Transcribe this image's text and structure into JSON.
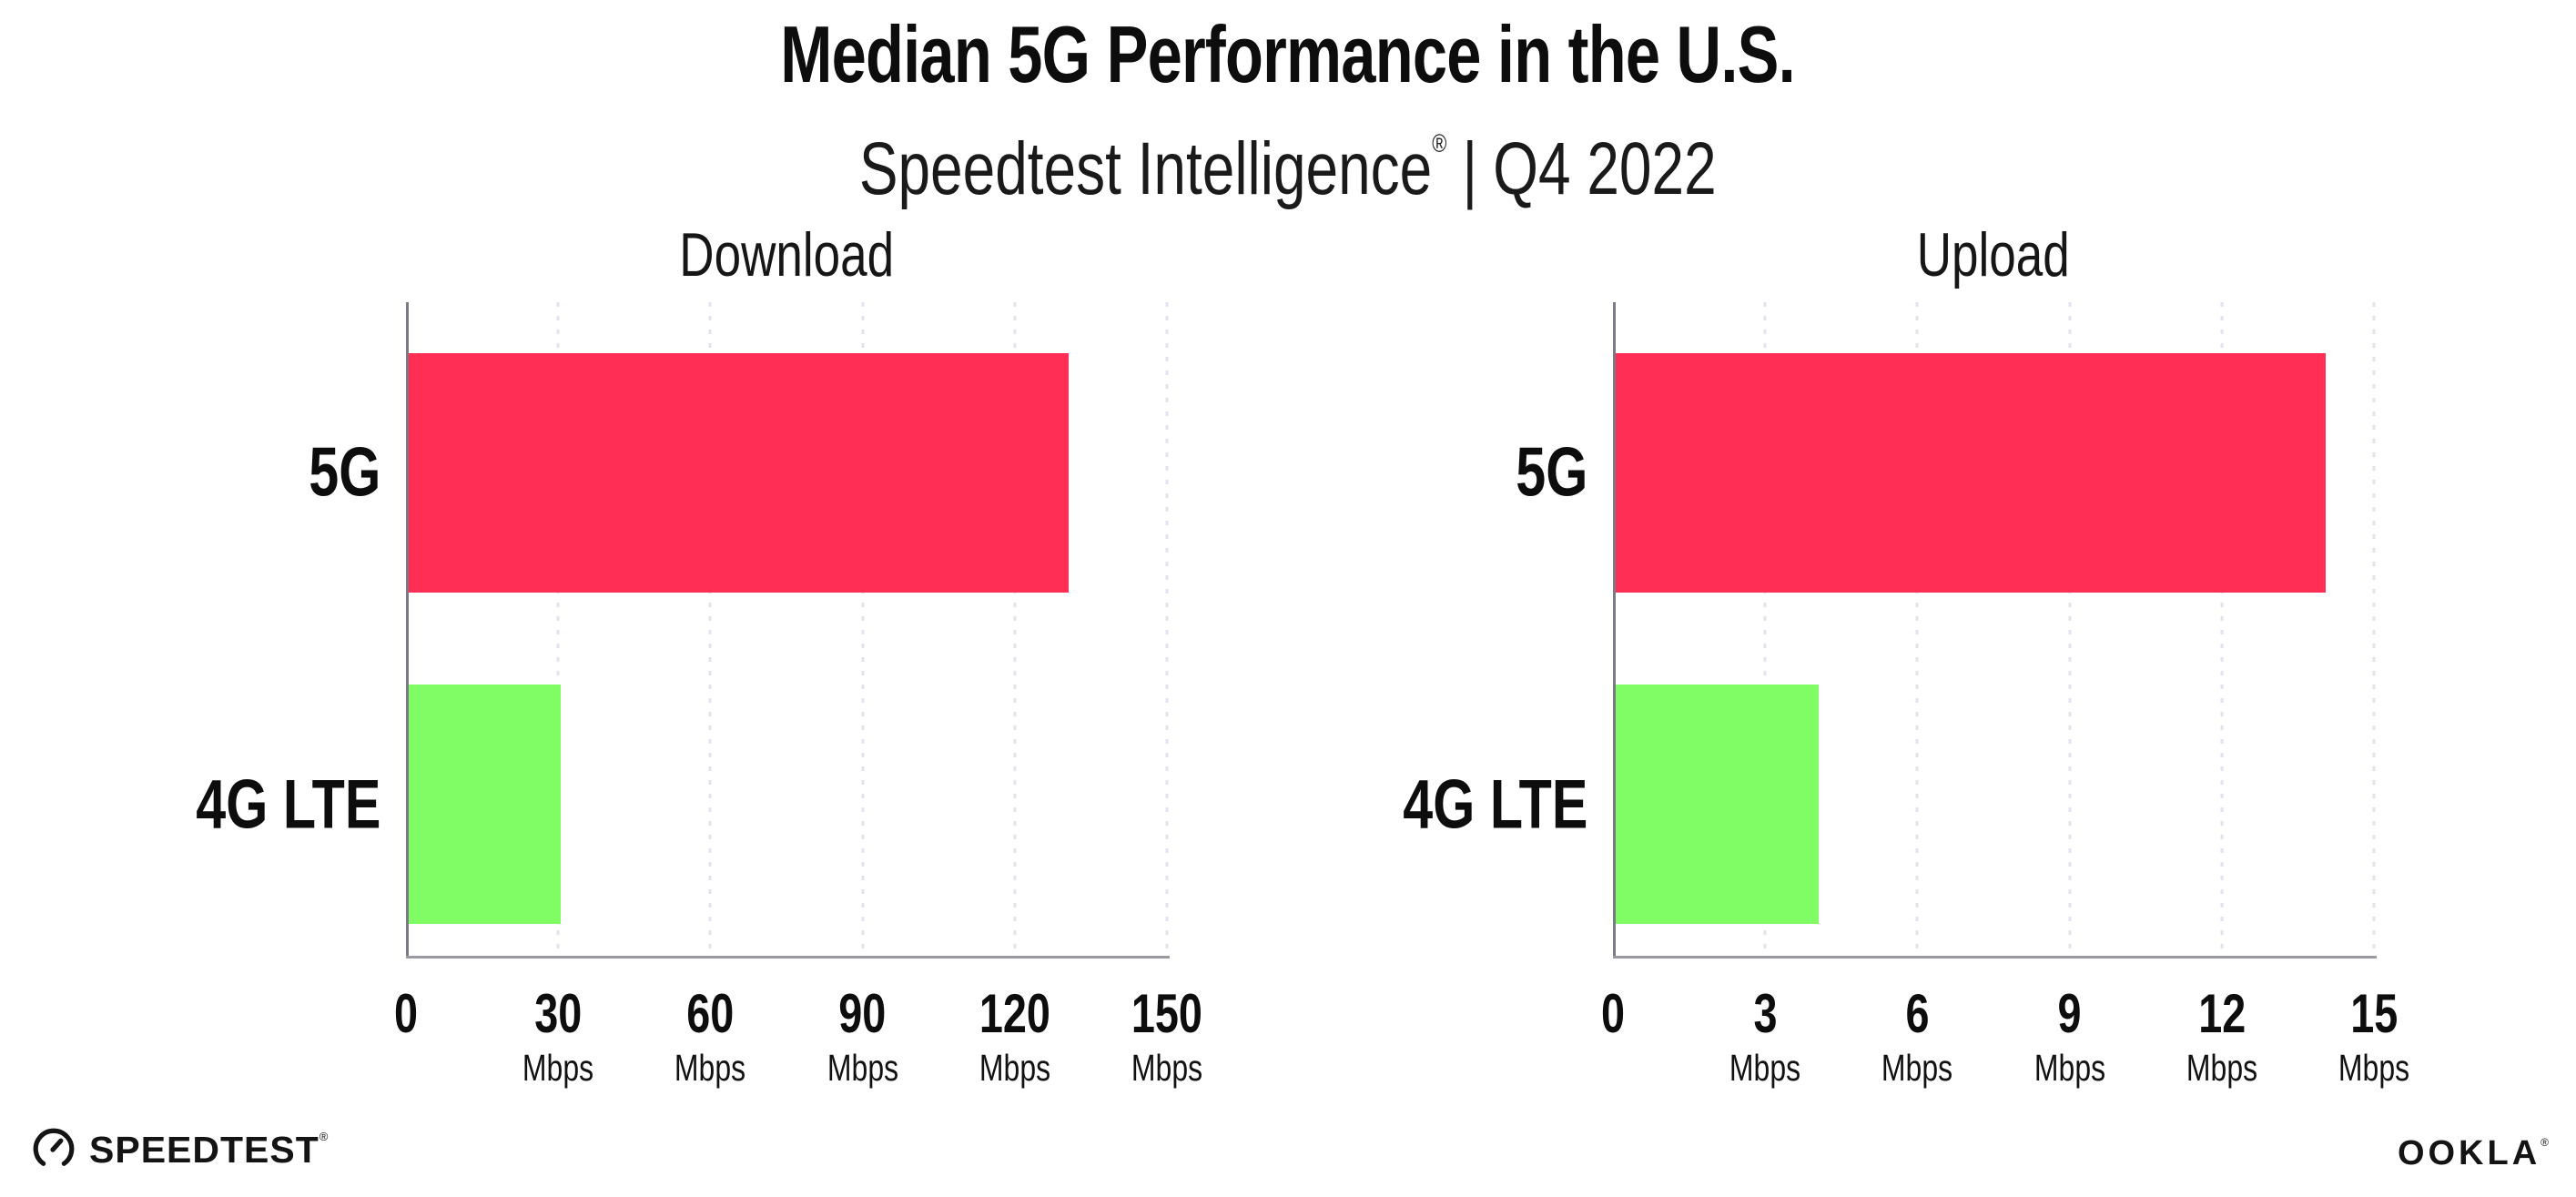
{
  "header": {
    "title": "Median 5G Performance in the U.S.",
    "subtitle": {
      "product": "Speedtest Intelligence",
      "registered_mark": "®",
      "separator": "|",
      "period": "Q4 2022"
    }
  },
  "chart_data": [
    {
      "type": "bar",
      "orientation": "horizontal",
      "title": "Download",
      "categories": [
        "5G",
        "4G LTE"
      ],
      "values": [
        130,
        30
      ],
      "unit": "Mbps",
      "xlim": [
        0,
        150
      ],
      "xticks": [
        0,
        30,
        60,
        90,
        120,
        150
      ],
      "colors": [
        "#ff2e55",
        "#80fc64"
      ],
      "grid": "dotted-vertical",
      "legend": "none"
    },
    {
      "type": "bar",
      "orientation": "horizontal",
      "title": "Upload",
      "categories": [
        "5G",
        "4G LTE"
      ],
      "values": [
        14,
        4
      ],
      "unit": "Mbps",
      "xlim": [
        0,
        15
      ],
      "xticks": [
        0,
        3,
        6,
        9,
        12,
        15
      ],
      "colors": [
        "#ff2e55",
        "#80fc64"
      ],
      "grid": "dotted-vertical",
      "legend": "none"
    }
  ],
  "footer": {
    "speedtest": {
      "label": "SPEEDTEST",
      "mark": "®"
    },
    "ookla": {
      "label": "OOKLA",
      "mark": "®"
    }
  },
  "style": {
    "bar_5g_color": "#ff2e55",
    "bar_4g_color": "#80fc64",
    "grid_color": "#e3e2ef",
    "xaxis_color": "#9c99a3",
    "yaxis_color": "#7c7987",
    "text_color": "#111111"
  }
}
